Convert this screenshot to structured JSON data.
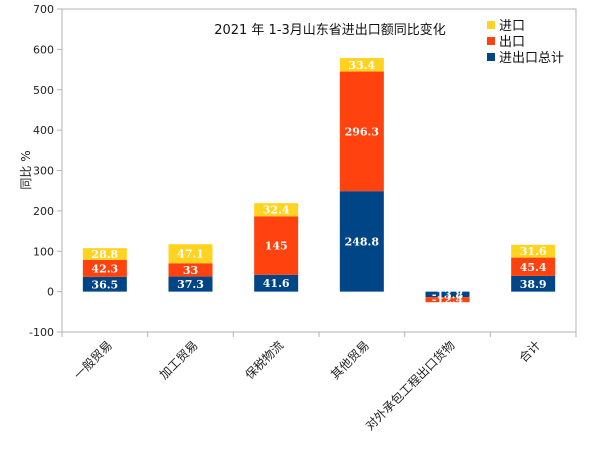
{
  "chart_data": {
    "type": "bar",
    "stacked": true,
    "title": "2021 年 1-3月山东省进出口额同比变化",
    "ylabel": "同比 %",
    "xlabel": "",
    "ylim": [
      -100,
      700
    ],
    "yticks": [
      -100,
      0,
      100,
      200,
      300,
      400,
      500,
      600,
      700
    ],
    "grid": false,
    "legend_position": "top-right",
    "categories": [
      "一般贸易",
      "加工贸易",
      "保税物流",
      "其他贸易",
      "对外承包工程出口货物",
      "合计"
    ],
    "series": [
      {
        "name": "进出口总计",
        "color": "#004586",
        "values": [
          36.5,
          37.3,
          41.6,
          248.8,
          -13.8,
          38.9
        ],
        "labels": [
          "36.5",
          "37.3",
          "41.6",
          "248.8",
          "-13.8",
          "38.9"
        ]
      },
      {
        "name": "出口",
        "color": "#ff420e",
        "values": [
          42.3,
          33,
          145,
          296.3,
          -12.4,
          45.4
        ],
        "labels": [
          "42.3",
          "33",
          "145",
          "296.3",
          "-12.4",
          "45.4"
        ]
      },
      {
        "name": "进口",
        "color": "#ffd320",
        "values": [
          28.8,
          47.1,
          32.4,
          33.4,
          0,
          31.6
        ],
        "labels": [
          "28.8",
          "47.1",
          "32.4",
          "33.4",
          "",
          "31.6"
        ]
      }
    ],
    "legend": [
      "进口",
      "出口",
      "进出口总计"
    ]
  }
}
